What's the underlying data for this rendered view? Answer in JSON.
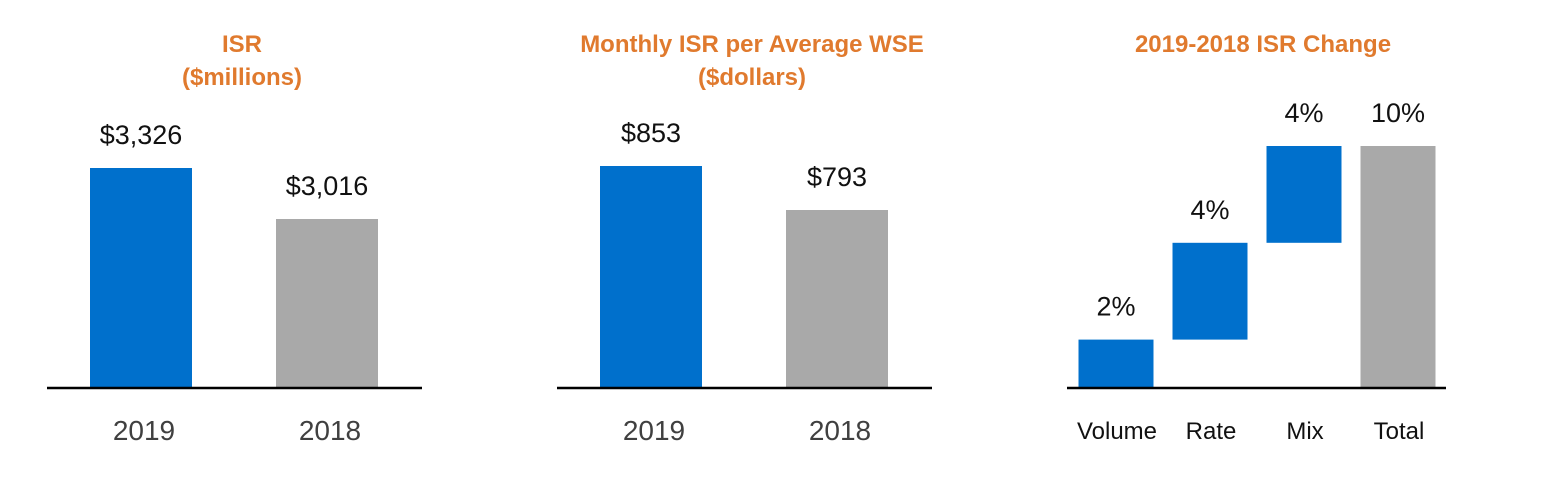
{
  "colors": {
    "title": "#E07A2E",
    "highlight_bar": "#0070CC",
    "comparison_bar": "#A9A9A9",
    "axis": "#000000"
  },
  "chart_data": [
    {
      "type": "bar",
      "title_lines": [
        "ISR",
        "($millions)"
      ],
      "categories": [
        "2019",
        "2018"
      ],
      "values": [
        3326,
        3016
      ],
      "data_labels": [
        "$3,326",
        "$3,016"
      ],
      "bar_colors": [
        "#0070CC",
        "#A9A9A9"
      ]
    },
    {
      "type": "bar",
      "title_lines": [
        "Monthly ISR per Average WSE",
        "($dollars)"
      ],
      "categories": [
        "2019",
        "2018"
      ],
      "values": [
        853,
        793
      ],
      "data_labels": [
        "$853",
        "$793"
      ],
      "bar_colors": [
        "#0070CC",
        "#A9A9A9"
      ]
    },
    {
      "type": "bar",
      "subtype": "waterfall",
      "title_lines": [
        "2019-2018 ISR Change"
      ],
      "categories": [
        "Volume",
        "Rate",
        "Mix",
        "Total"
      ],
      "values": [
        2,
        4,
        4,
        10
      ],
      "data_labels": [
        "2%",
        "4%",
        "4%",
        "10%"
      ],
      "bar_colors": [
        "#0070CC",
        "#0070CC",
        "#0070CC",
        "#A9A9A9"
      ]
    }
  ]
}
